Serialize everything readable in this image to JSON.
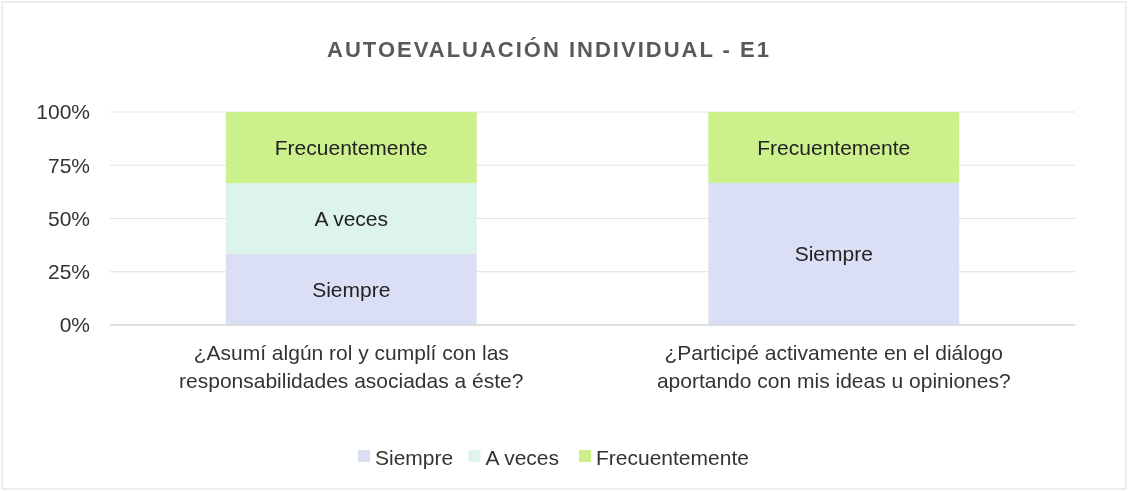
{
  "chart_data": {
    "type": "bar",
    "stacked": true,
    "title": "AUTOEVALUACIÓN INDIVIDUAL - E1",
    "categories": [
      "¿Asumí algún rol y cumplí con las responsabilidades asociadas a éste?",
      "¿Participé activamente en el diálogo aportando con mis ideas u opiniones?"
    ],
    "series": [
      {
        "name": "Siempre",
        "color": "#dadff5",
        "values": [
          33.3,
          66.7
        ],
        "value_labels": [
          "Siempre",
          "Siempre"
        ]
      },
      {
        "name": "A veces",
        "color": "#dcf3ee",
        "values": [
          33.3,
          0
        ],
        "value_labels": [
          "A veces",
          null
        ]
      },
      {
        "name": "Frecuentemente",
        "color": "#ccf08c",
        "values": [
          33.4,
          33.3
        ],
        "value_labels": [
          "Frecuentemente",
          "Frecuentemente"
        ]
      }
    ],
    "ylim": [
      0,
      100
    ],
    "yticks": [
      {
        "value": 0,
        "label": "0%"
      },
      {
        "value": 25,
        "label": "25%"
      },
      {
        "value": 50,
        "label": "50%"
      },
      {
        "value": 75,
        "label": "75%"
      },
      {
        "value": 100,
        "label": "100%"
      }
    ],
    "grid": "y",
    "legend": "bottom"
  }
}
